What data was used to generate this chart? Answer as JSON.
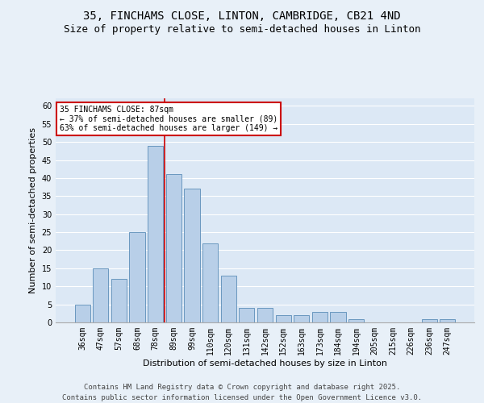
{
  "title_line1": "35, FINCHAMS CLOSE, LINTON, CAMBRIDGE, CB21 4ND",
  "title_line2": "Size of property relative to semi-detached houses in Linton",
  "xlabel": "Distribution of semi-detached houses by size in Linton",
  "ylabel": "Number of semi-detached properties",
  "categories": [
    "36sqm",
    "47sqm",
    "57sqm",
    "68sqm",
    "78sqm",
    "89sqm",
    "99sqm",
    "110sqm",
    "120sqm",
    "131sqm",
    "142sqm",
    "152sqm",
    "163sqm",
    "173sqm",
    "184sqm",
    "194sqm",
    "205sqm",
    "215sqm",
    "226sqm",
    "236sqm",
    "247sqm"
  ],
  "values": [
    5,
    15,
    12,
    25,
    49,
    41,
    37,
    22,
    13,
    4,
    4,
    2,
    2,
    3,
    3,
    1,
    0,
    0,
    0,
    1,
    1
  ],
  "bar_color": "#b8cfe8",
  "bar_edge_color": "#5b8db8",
  "vline_index": 4,
  "ylim": [
    0,
    62
  ],
  "yticks": [
    0,
    5,
    10,
    15,
    20,
    25,
    30,
    35,
    40,
    45,
    50,
    55,
    60
  ],
  "annotation_title": "35 FINCHAMS CLOSE: 87sqm",
  "annotation_line1": "← 37% of semi-detached houses are smaller (89)",
  "annotation_line2": "63% of semi-detached houses are larger (149) →",
  "annotation_box_color": "#ffffff",
  "annotation_box_edge": "#cc0000",
  "vline_color": "#cc0000",
  "footer_line1": "Contains HM Land Registry data © Crown copyright and database right 2025.",
  "footer_line2": "Contains public sector information licensed under the Open Government Licence v3.0.",
  "bg_color": "#e8f0f8",
  "plot_bg_color": "#dce8f5",
  "grid_color": "#ffffff",
  "title_fontsize": 10,
  "subtitle_fontsize": 9,
  "axis_label_fontsize": 8,
  "tick_fontsize": 7,
  "annotation_fontsize": 7,
  "footer_fontsize": 6.5
}
